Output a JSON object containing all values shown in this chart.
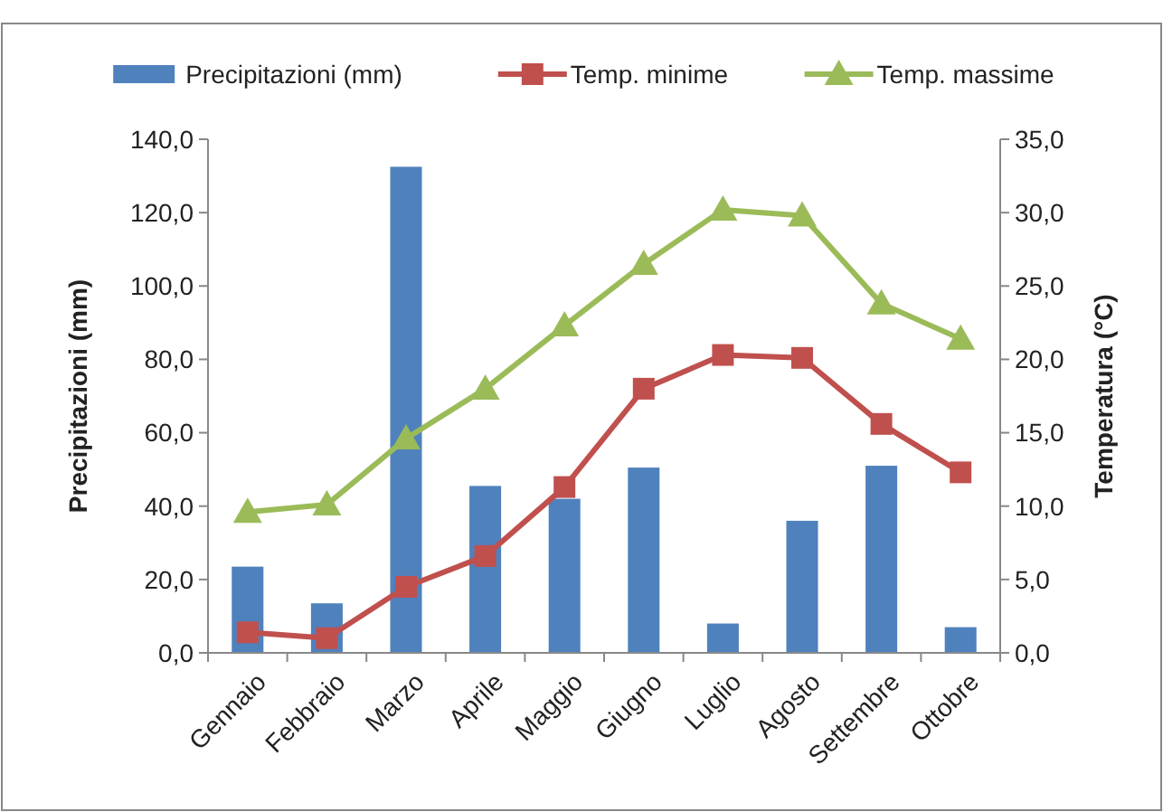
{
  "chart_data": {
    "type": "bar",
    "categories": [
      "Gennaio",
      "Febbraio",
      "Marzo",
      "Aprile",
      "Maggio",
      "Giugno",
      "Luglio",
      "Agosto",
      "Settembre",
      "Ottobre"
    ],
    "ylabel": "Precipitazioni (mm)",
    "y2label": "Temperatura (°C)",
    "ylim": [
      0,
      140
    ],
    "yticks": [
      {
        "value": 0,
        "label": "0,0"
      },
      {
        "value": 20,
        "label": "20,0"
      },
      {
        "value": 40,
        "label": "40,0"
      },
      {
        "value": 60,
        "label": "60,0"
      },
      {
        "value": 80,
        "label": "80,0"
      },
      {
        "value": 100,
        "label": "100,0"
      },
      {
        "value": 120,
        "label": "120,0"
      },
      {
        "value": 140,
        "label": "140,0"
      }
    ],
    "y2lim": [
      0,
      35
    ],
    "y2ticks": [
      {
        "value": 0,
        "label": "0,0"
      },
      {
        "value": 5,
        "label": "5,0"
      },
      {
        "value": 10,
        "label": "10,0"
      },
      {
        "value": 15,
        "label": "15,0"
      },
      {
        "value": 20,
        "label": "20,0"
      },
      {
        "value": 25,
        "label": "25,0"
      },
      {
        "value": 30,
        "label": "30,0"
      },
      {
        "value": 35,
        "label": "35,0"
      }
    ],
    "legend": "top",
    "grid": false,
    "series": [
      {
        "name": "Precipitazioni (mm)",
        "color": "#4f81bd",
        "values": [
          23.5,
          13.5,
          132.5,
          45.5,
          42,
          50.5,
          8,
          36,
          51,
          7
        ]
      },
      {
        "name": "Temp. minime",
        "type": "line",
        "axis": "y2",
        "marker": "square",
        "color": "#c0504d",
        "values": [
          1.4,
          1.0,
          4.5,
          6.6,
          11.3,
          18.0,
          20.3,
          20.1,
          15.6,
          12.3
        ]
      },
      {
        "name": "Temp. massime",
        "type": "line",
        "axis": "y2",
        "marker": "triangle",
        "color": "#9bbb59",
        "values": [
          9.6,
          10.1,
          14.6,
          18.0,
          22.3,
          26.5,
          30.2,
          29.8,
          23.8,
          21.4
        ]
      }
    ]
  }
}
